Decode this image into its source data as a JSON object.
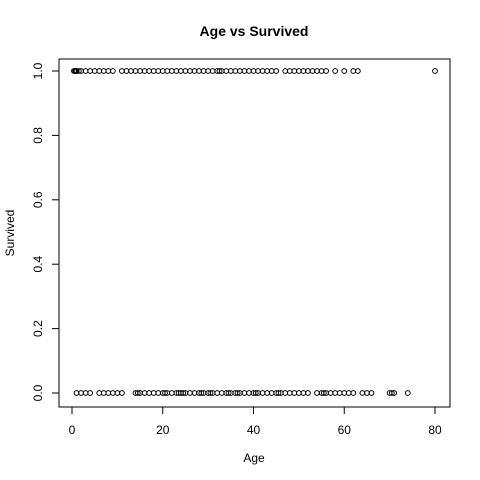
{
  "chart_data": {
    "type": "scatter",
    "title": "Age vs Survived",
    "xlabel": "Age",
    "ylabel": "Survived",
    "xlim": [
      0,
      81
    ],
    "ylim": [
      0,
      1
    ],
    "x_ticks": [
      0,
      20,
      40,
      60,
      80
    ],
    "x_tick_labels": [
      "0",
      "20",
      "40",
      "60",
      "80"
    ],
    "y_ticks": [
      0,
      0.2,
      0.4,
      0.6,
      0.8,
      1.0
    ],
    "y_tick_labels": [
      "0.0",
      "0.2",
      "0.4",
      "0.6",
      "0.8",
      "1.0"
    ],
    "grid": false,
    "legend": "none",
    "point_color": "#000000",
    "marker": "open-circle",
    "series": [
      {
        "values": [
          {
            "x": 0.42,
            "y": 1
          },
          {
            "x": 0.67,
            "y": 1
          },
          {
            "x": 0.75,
            "y": 1
          },
          {
            "x": 0.83,
            "y": 1
          },
          {
            "x": 0.92,
            "y": 1
          },
          {
            "x": 1,
            "y": 1
          },
          {
            "x": 1.5,
            "y": 1
          },
          {
            "x": 2,
            "y": 1
          },
          {
            "x": 3,
            "y": 1
          },
          {
            "x": 4,
            "y": 1
          },
          {
            "x": 5,
            "y": 1
          },
          {
            "x": 6,
            "y": 1
          },
          {
            "x": 7,
            "y": 1
          },
          {
            "x": 8,
            "y": 1
          },
          {
            "x": 9,
            "y": 1
          },
          {
            "x": 11,
            "y": 1
          },
          {
            "x": 12,
            "y": 1
          },
          {
            "x": 13,
            "y": 1
          },
          {
            "x": 14,
            "y": 1
          },
          {
            "x": 15,
            "y": 1
          },
          {
            "x": 16,
            "y": 1
          },
          {
            "x": 17,
            "y": 1
          },
          {
            "x": 18,
            "y": 1
          },
          {
            "x": 19,
            "y": 1
          },
          {
            "x": 20,
            "y": 1
          },
          {
            "x": 21,
            "y": 1
          },
          {
            "x": 22,
            "y": 1
          },
          {
            "x": 23,
            "y": 1
          },
          {
            "x": 24,
            "y": 1
          },
          {
            "x": 25,
            "y": 1
          },
          {
            "x": 26,
            "y": 1
          },
          {
            "x": 27,
            "y": 1
          },
          {
            "x": 28,
            "y": 1
          },
          {
            "x": 29,
            "y": 1
          },
          {
            "x": 30,
            "y": 1
          },
          {
            "x": 31,
            "y": 1
          },
          {
            "x": 32,
            "y": 1
          },
          {
            "x": 32.5,
            "y": 1
          },
          {
            "x": 33,
            "y": 1
          },
          {
            "x": 34,
            "y": 1
          },
          {
            "x": 35,
            "y": 1
          },
          {
            "x": 36,
            "y": 1
          },
          {
            "x": 37,
            "y": 1
          },
          {
            "x": 38,
            "y": 1
          },
          {
            "x": 39,
            "y": 1
          },
          {
            "x": 40,
            "y": 1
          },
          {
            "x": 41,
            "y": 1
          },
          {
            "x": 42,
            "y": 1
          },
          {
            "x": 43,
            "y": 1
          },
          {
            "x": 44,
            "y": 1
          },
          {
            "x": 45,
            "y": 1
          },
          {
            "x": 47,
            "y": 1
          },
          {
            "x": 48,
            "y": 1
          },
          {
            "x": 49,
            "y": 1
          },
          {
            "x": 50,
            "y": 1
          },
          {
            "x": 51,
            "y": 1
          },
          {
            "x": 52,
            "y": 1
          },
          {
            "x": 53,
            "y": 1
          },
          {
            "x": 54,
            "y": 1
          },
          {
            "x": 55,
            "y": 1
          },
          {
            "x": 56,
            "y": 1
          },
          {
            "x": 58,
            "y": 1
          },
          {
            "x": 60,
            "y": 1
          },
          {
            "x": 62,
            "y": 1
          },
          {
            "x": 63,
            "y": 1
          },
          {
            "x": 80,
            "y": 1
          },
          {
            "x": 1,
            "y": 0
          },
          {
            "x": 2,
            "y": 0
          },
          {
            "x": 3,
            "y": 0
          },
          {
            "x": 4,
            "y": 0
          },
          {
            "x": 6,
            "y": 0
          },
          {
            "x": 7,
            "y": 0
          },
          {
            "x": 8,
            "y": 0
          },
          {
            "x": 9,
            "y": 0
          },
          {
            "x": 10,
            "y": 0
          },
          {
            "x": 11,
            "y": 0
          },
          {
            "x": 14,
            "y": 0
          },
          {
            "x": 14.5,
            "y": 0
          },
          {
            "x": 15,
            "y": 0
          },
          {
            "x": 16,
            "y": 0
          },
          {
            "x": 17,
            "y": 0
          },
          {
            "x": 18,
            "y": 0
          },
          {
            "x": 19,
            "y": 0
          },
          {
            "x": 20,
            "y": 0
          },
          {
            "x": 20.5,
            "y": 0
          },
          {
            "x": 21,
            "y": 0
          },
          {
            "x": 22,
            "y": 0
          },
          {
            "x": 23,
            "y": 0
          },
          {
            "x": 23.5,
            "y": 0
          },
          {
            "x": 24,
            "y": 0
          },
          {
            "x": 24.5,
            "y": 0
          },
          {
            "x": 25,
            "y": 0
          },
          {
            "x": 26,
            "y": 0
          },
          {
            "x": 27,
            "y": 0
          },
          {
            "x": 28,
            "y": 0
          },
          {
            "x": 28.5,
            "y": 0
          },
          {
            "x": 29,
            "y": 0
          },
          {
            "x": 30,
            "y": 0
          },
          {
            "x": 30.5,
            "y": 0
          },
          {
            "x": 31,
            "y": 0
          },
          {
            "x": 32,
            "y": 0
          },
          {
            "x": 33,
            "y": 0
          },
          {
            "x": 34,
            "y": 0
          },
          {
            "x": 34.5,
            "y": 0
          },
          {
            "x": 35,
            "y": 0
          },
          {
            "x": 36,
            "y": 0
          },
          {
            "x": 36.5,
            "y": 0
          },
          {
            "x": 37,
            "y": 0
          },
          {
            "x": 38,
            "y": 0
          },
          {
            "x": 39,
            "y": 0
          },
          {
            "x": 40,
            "y": 0
          },
          {
            "x": 40.5,
            "y": 0
          },
          {
            "x": 41,
            "y": 0
          },
          {
            "x": 42,
            "y": 0
          },
          {
            "x": 43,
            "y": 0
          },
          {
            "x": 44,
            "y": 0
          },
          {
            "x": 45,
            "y": 0
          },
          {
            "x": 45.5,
            "y": 0
          },
          {
            "x": 46,
            "y": 0
          },
          {
            "x": 47,
            "y": 0
          },
          {
            "x": 48,
            "y": 0
          },
          {
            "x": 49,
            "y": 0
          },
          {
            "x": 50,
            "y": 0
          },
          {
            "x": 51,
            "y": 0
          },
          {
            "x": 52,
            "y": 0
          },
          {
            "x": 54,
            "y": 0
          },
          {
            "x": 55,
            "y": 0
          },
          {
            "x": 55.5,
            "y": 0
          },
          {
            "x": 56,
            "y": 0
          },
          {
            "x": 57,
            "y": 0
          },
          {
            "x": 58,
            "y": 0
          },
          {
            "x": 59,
            "y": 0
          },
          {
            "x": 60,
            "y": 0
          },
          {
            "x": 61,
            "y": 0
          },
          {
            "x": 62,
            "y": 0
          },
          {
            "x": 64,
            "y": 0
          },
          {
            "x": 65,
            "y": 0
          },
          {
            "x": 66,
            "y": 0
          },
          {
            "x": 70,
            "y": 0
          },
          {
            "x": 70.5,
            "y": 0
          },
          {
            "x": 71,
            "y": 0
          },
          {
            "x": 74,
            "y": 0
          }
        ]
      }
    ]
  }
}
